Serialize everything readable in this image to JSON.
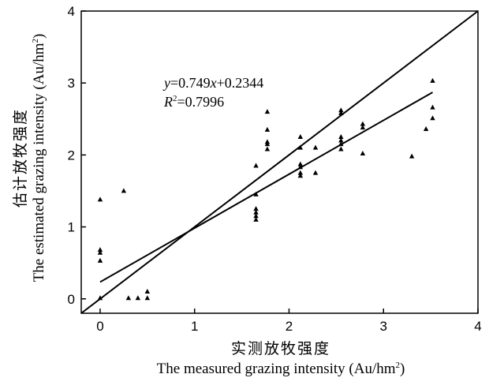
{
  "chart_data": {
    "type": "scatter",
    "xlabel_cn": "实测放牧强度",
    "xlabel_en": "The measured grazing intensity (Au/hm",
    "ylabel_cn": "估计放牧强度",
    "ylabel_en": "The estimated grazing intensity (Au/hm",
    "unit_sup": "2",
    "unit_close": ")",
    "xlim": [
      -0.2,
      4
    ],
    "ylim": [
      -0.2,
      4
    ],
    "xticks": [
      0,
      1,
      2,
      3,
      4
    ],
    "yticks": [
      0,
      1,
      2,
      3,
      4
    ],
    "grid": false,
    "marker": "triangle",
    "equation": {
      "y": "y",
      "equals": "=0.749",
      "x": "x",
      "intercept": "+0.2344"
    },
    "r2": {
      "r": "R",
      "sup": "2",
      "value": "=0.7996"
    },
    "fit": {
      "slope": 0.749,
      "intercept": 0.2344,
      "x_range": [
        0,
        3.52
      ]
    },
    "identity_line": {
      "x_range": [
        -0.2,
        4
      ]
    },
    "points": [
      [
        0,
        1.38
      ],
      [
        0,
        0.68
      ],
      [
        0,
        0.64
      ],
      [
        0,
        0.53
      ],
      [
        0,
        0.01
      ],
      [
        0.25,
        1.5
      ],
      [
        0.3,
        0.01
      ],
      [
        0.4,
        0.01
      ],
      [
        0.5,
        0.01
      ],
      [
        0.5,
        0.1
      ],
      [
        1.65,
        1.85
      ],
      [
        1.65,
        1.45
      ],
      [
        1.65,
        1.25
      ],
      [
        1.65,
        1.2
      ],
      [
        1.65,
        1.15
      ],
      [
        1.65,
        1.1
      ],
      [
        1.77,
        2.6
      ],
      [
        1.77,
        2.35
      ],
      [
        1.77,
        2.18
      ],
      [
        1.77,
        2.15
      ],
      [
        1.77,
        2.08
      ],
      [
        2.12,
        2.25
      ],
      [
        2.12,
        2.1
      ],
      [
        2.12,
        1.87
      ],
      [
        2.12,
        1.83
      ],
      [
        2.12,
        1.75
      ],
      [
        2.12,
        1.71
      ],
      [
        2.28,
        2.1
      ],
      [
        2.28,
        1.75
      ],
      [
        2.55,
        2.62
      ],
      [
        2.55,
        2.58
      ],
      [
        2.55,
        2.25
      ],
      [
        2.55,
        2.2
      ],
      [
        2.55,
        2.15
      ],
      [
        2.55,
        2.08
      ],
      [
        2.78,
        2.43
      ],
      [
        2.78,
        2.38
      ],
      [
        2.78,
        2.02
      ],
      [
        3.3,
        1.98
      ],
      [
        3.45,
        2.36
      ],
      [
        3.52,
        3.03
      ],
      [
        3.52,
        2.66
      ],
      [
        3.52,
        2.51
      ]
    ]
  }
}
